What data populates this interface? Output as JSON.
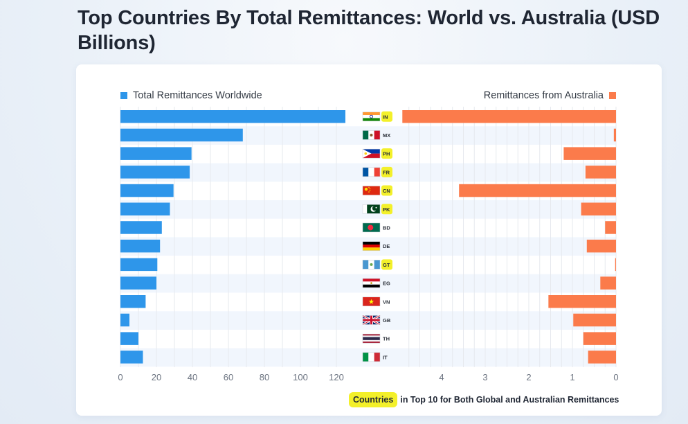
{
  "page": {
    "title": "Top Countries By Total Remittances: World vs. Australia (USD Billions)"
  },
  "legend": {
    "left_label": "Total Remittances Worldwide",
    "right_label": "Remittances from Australia"
  },
  "footnote": {
    "highlight": "Countries",
    "text": "in Top 10 for Both Global and Australian Remittances"
  },
  "colors": {
    "world": "#2e96ea",
    "australia": "#fb7b4b",
    "highlight": "#f3f02a",
    "row_band": "#f1f6fd",
    "grid": "#e6e9ee"
  },
  "chart_data": {
    "type": "bar",
    "layout": "butterfly",
    "categories": [
      "IN",
      "MX",
      "PH",
      "FR",
      "CN",
      "PK",
      "BD",
      "DE",
      "GT",
      "EG",
      "VN",
      "GB",
      "TH",
      "IT"
    ],
    "highlighted_categories": [
      "IN",
      "PH",
      "FR",
      "CN",
      "PK",
      "GT"
    ],
    "flag_icons": [
      "india-flag-icon",
      "mexico-flag-icon",
      "philippines-flag-icon",
      "france-flag-icon",
      "china-flag-icon",
      "pakistan-flag-icon",
      "bangladesh-flag-icon",
      "germany-flag-icon",
      "guatemala-flag-icon",
      "egypt-flag-icon",
      "vietnam-flag-icon",
      "uk-flag-icon",
      "thailand-flag-icon",
      "italy-flag-icon"
    ],
    "series": [
      {
        "name": "Total Remittances Worldwide",
        "values": [
          125,
          68,
          39.5,
          38.5,
          29.5,
          27.5,
          23,
          22,
          20.5,
          20,
          14,
          5,
          10,
          12.5
        ],
        "xlim": [
          0,
          130
        ],
        "ticks": [
          0,
          20,
          40,
          60,
          80,
          100,
          120
        ]
      },
      {
        "name": "Remittances from Australia",
        "values": [
          4.9,
          0.05,
          1.2,
          0.7,
          3.6,
          0.8,
          0.25,
          0.67,
          0.02,
          0.36,
          1.55,
          0.98,
          0.75,
          0.64
        ],
        "xlim": [
          0,
          5
        ],
        "ticks": [
          4,
          3,
          2,
          1,
          0
        ],
        "reversed": true
      }
    ]
  }
}
